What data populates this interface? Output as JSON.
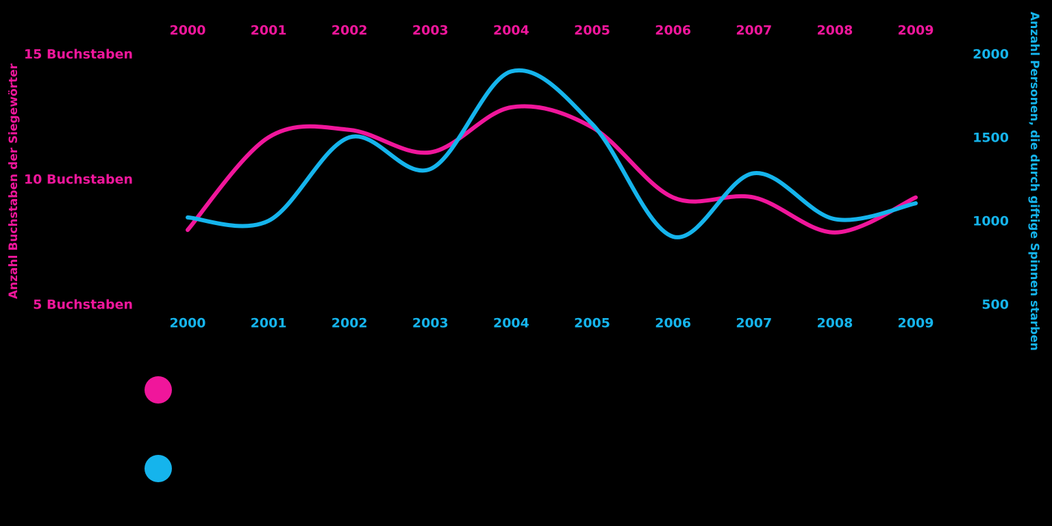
{
  "colors": {
    "background": "#000000",
    "pink": "#f0169b",
    "blue": "#15b4ec"
  },
  "chart_data": {
    "type": "line",
    "x": [
      "2000",
      "2001",
      "2002",
      "2003",
      "2004",
      "2005",
      "2006",
      "2007",
      "2008",
      "2009"
    ],
    "left_axis": {
      "label": "Anzahl Buchstaben der Siegewörter",
      "ticks": [
        "15 Buchstaben",
        "10 Buchstaben",
        "5 Buchstaben"
      ],
      "tick_values": [
        15,
        10,
        5
      ],
      "range": [
        5,
        15
      ]
    },
    "right_axis": {
      "label": "Anzahl Personen, die durch giftige Spinnen starben",
      "ticks": [
        "2000",
        "1500",
        "1000",
        "500"
      ],
      "tick_values": [
        2000,
        1500,
        1000,
        500
      ],
      "range": [
        500,
        2000
      ]
    },
    "series": [
      {
        "axis": "left",
        "color": "#f0169b",
        "values": [
          8.0,
          11.7,
          12.0,
          11.1,
          12.9,
          12.1,
          9.3,
          9.3,
          7.9,
          9.3
        ]
      },
      {
        "axis": "right",
        "color": "#15b4ec",
        "values": [
          1025,
          1005,
          1505,
          1315,
          1900,
          1585,
          910,
          1290,
          1015,
          1110
        ]
      }
    ],
    "legend": {
      "position": "bottom-left",
      "entries": [
        {
          "color": "#f0169b"
        },
        {
          "color": "#15b4ec"
        }
      ]
    },
    "grid": false
  }
}
